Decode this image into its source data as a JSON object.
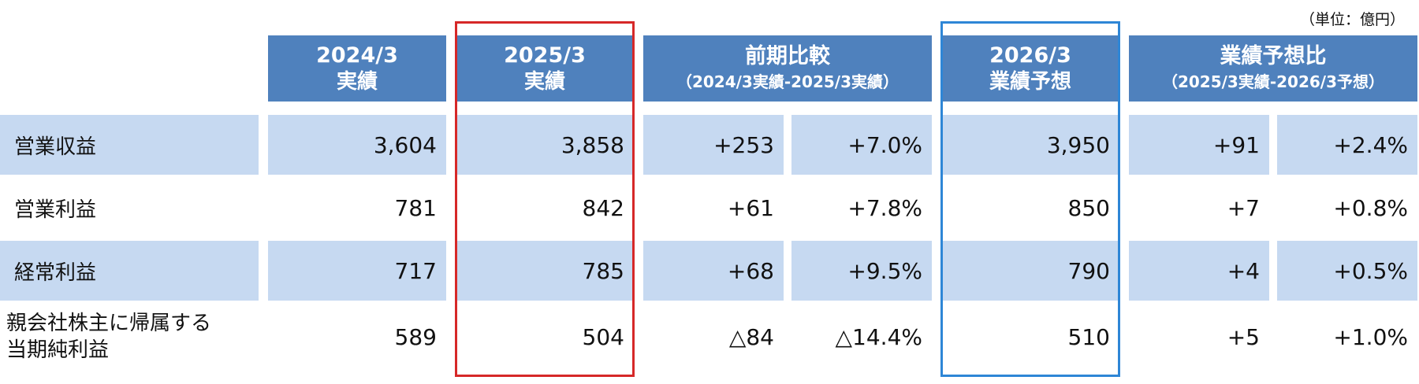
{
  "unit_label": "（単位：億円）",
  "headers": {
    "fy2024": {
      "line1": "2024/3",
      "line2": "実績"
    },
    "fy2025": {
      "line1": "2025/3",
      "line2": "実績"
    },
    "prev_compare": {
      "line1": "前期比較",
      "line2": "（2024/3実績-2025/3実績）"
    },
    "fy2026": {
      "line1": "2026/3",
      "line2": "業績予想"
    },
    "forecast_compare": {
      "line1": "業績予想比",
      "line2": "（2025/3実績-2026/3予想）"
    }
  },
  "rows": [
    {
      "label": "営業収益",
      "fy2024": "3,604",
      "fy2025": "3,858",
      "diff": "+253",
      "pct": "+7.0%",
      "fy2026": "3,950",
      "fdiff": "+91",
      "fpct": "+2.4%"
    },
    {
      "label": "営業利益",
      "fy2024": "781",
      "fy2025": "842",
      "diff": "+61",
      "pct": "+7.8%",
      "fy2026": "850",
      "fdiff": "+7",
      "fpct": "+0.8%"
    },
    {
      "label": "経常利益",
      "fy2024": "717",
      "fy2025": "785",
      "diff": "+68",
      "pct": "+9.5%",
      "fy2026": "790",
      "fdiff": "+4",
      "fpct": "+0.5%"
    },
    {
      "label_line1": "親会社株主に帰属する",
      "label_line2": "当期純利益",
      "fy2024": "589",
      "fy2025": "504",
      "diff": "△84",
      "pct": "△14.4%",
      "fy2026": "510",
      "fdiff": "+5",
      "fpct": "+1.0%"
    }
  ],
  "colors": {
    "header": "#4f81bd",
    "shade": "#c6d9f1",
    "highlight_actual": "#d62828",
    "highlight_forecast": "#2e86d6"
  }
}
